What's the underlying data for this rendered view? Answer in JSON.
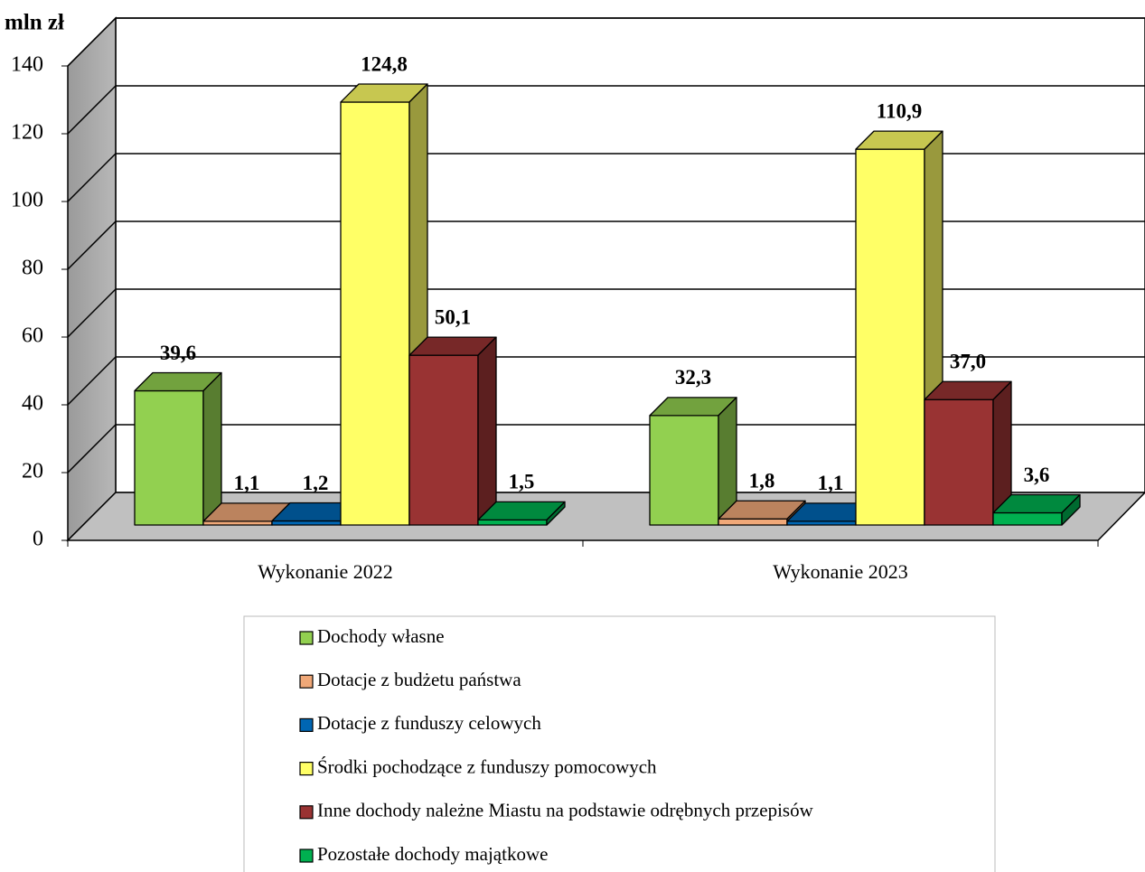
{
  "chart_data": {
    "type": "bar3d",
    "y_label": "mln zł",
    "categories": [
      "Wykonanie 2022",
      "Wykonanie 2023"
    ],
    "series": [
      {
        "name": "Dochody własne",
        "color": "#92d050",
        "values": [
          39.6,
          32.3
        ],
        "value_labels": [
          "39,6",
          "32,3"
        ]
      },
      {
        "name": "Dotacje z budżetu państwa",
        "color": "#f0a878",
        "values": [
          1.1,
          1.8
        ],
        "value_labels": [
          "1,1",
          "1,8"
        ]
      },
      {
        "name": "Dotacje z funduszy celowych",
        "color": "#0066b3",
        "values": [
          1.2,
          1.1
        ],
        "value_labels": [
          "1,2",
          "1,1"
        ]
      },
      {
        "name": "Środki pochodzące z funduszy pomocowych",
        "color": "#ffff66",
        "values": [
          124.8,
          110.9
        ],
        "value_labels": [
          "124,8",
          "110,9"
        ]
      },
      {
        "name": "Inne dochody należne Miastu na podstawie odrębnych przepisów",
        "color": "#993333",
        "values": [
          50.1,
          37.0
        ],
        "value_labels": [
          "50,1",
          "37,0"
        ]
      },
      {
        "name": "Pozostałe dochody majątkowe",
        "color": "#00b050",
        "values": [
          1.5,
          3.6
        ],
        "value_labels": [
          "1,5",
          "3,6"
        ]
      }
    ],
    "ylim": [
      0,
      140
    ],
    "yticks": [
      0,
      20,
      40,
      60,
      80,
      100,
      120,
      140
    ],
    "grid": true
  }
}
